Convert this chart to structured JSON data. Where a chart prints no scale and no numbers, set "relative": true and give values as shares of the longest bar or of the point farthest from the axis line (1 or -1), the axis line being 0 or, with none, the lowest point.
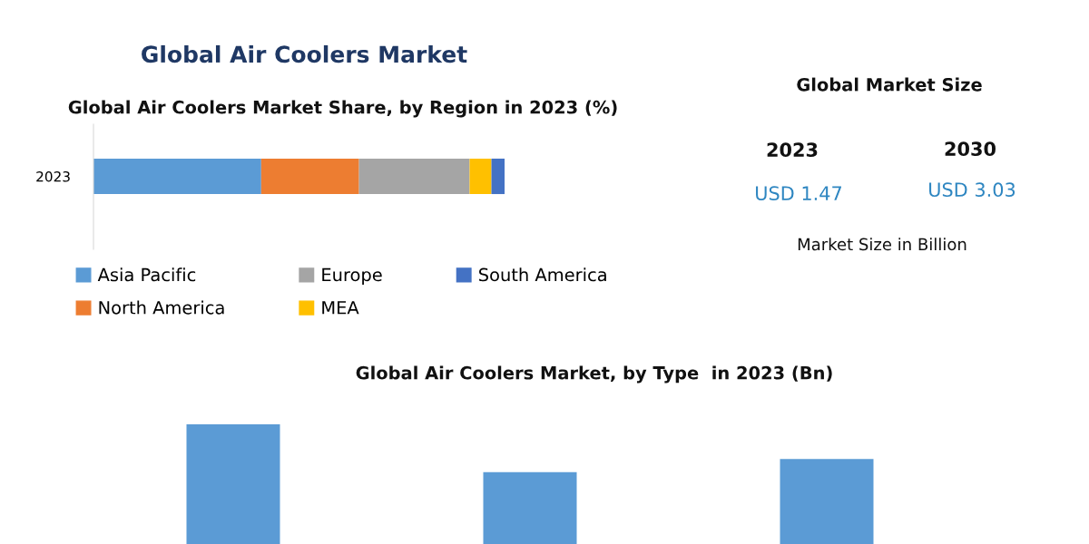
{
  "chart_data": [
    {
      "type": "bar",
      "orientation": "horizontal",
      "stacked": true,
      "relative": true,
      "title": "Global Air Coolers Market",
      "subtitle": "Global Air Coolers Market Share, by Region in 2023 (%)",
      "categories": [
        "2023"
      ],
      "legend": "bottom",
      "series": [
        {
          "name": "Asia Pacific",
          "color": "#5b9bd5",
          "values": [
            0.408
          ]
        },
        {
          "name": "North America",
          "color": "#ed7d31",
          "values": [
            0.238
          ]
        },
        {
          "name": "Europe",
          "color": "#a5a5a5",
          "values": [
            0.269
          ]
        },
        {
          "name": "MEA",
          "color": "#ffc000",
          "values": [
            0.053
          ]
        },
        {
          "name": "South America",
          "color": "#4472c4",
          "values": [
            0.032
          ]
        }
      ]
    },
    {
      "type": "bar",
      "relative": true,
      "title": "Global Air Coolers Market, by Type  in 2023 (Bn)",
      "categories": [
        null,
        null,
        null
      ],
      "values": [
        1,
        0.6,
        0.71
      ],
      "color": "#5b9bd5"
    },
    {
      "type": "other",
      "title": "Global Market Size",
      "annotations": [
        "2023",
        "2030",
        "USD 1.47",
        "USD 3.03",
        "Market Size in Billion"
      ]
    }
  ]
}
